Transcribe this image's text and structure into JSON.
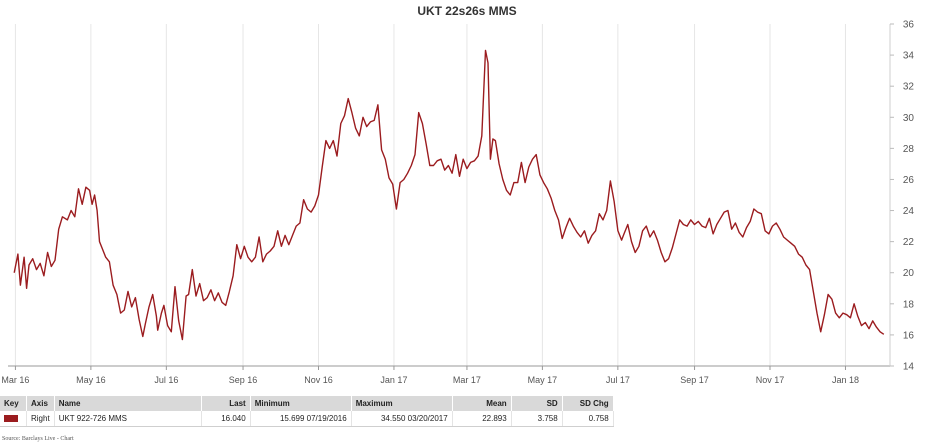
{
  "chart_data": {
    "type": "line",
    "title": "UKT 22s26s MMS",
    "xlabel": "",
    "ylabel": "",
    "y_axis_side": "right",
    "ylim": [
      14,
      36
    ],
    "y_ticks": [
      14,
      16,
      18,
      20,
      22,
      24,
      26,
      28,
      30,
      32,
      34,
      36
    ],
    "x_ticks": [
      {
        "label": "Mar 16",
        "date": "2016-03-01"
      },
      {
        "label": "May 16",
        "date": "2016-05-01"
      },
      {
        "label": "Jul 16",
        "date": "2016-07-01"
      },
      {
        "label": "Sep 16",
        "date": "2016-09-01"
      },
      {
        "label": "Nov 16",
        "date": "2016-11-01"
      },
      {
        "label": "Jan 17",
        "date": "2017-01-01"
      },
      {
        "label": "Mar 17",
        "date": "2017-03-01"
      },
      {
        "label": "May 17",
        "date": "2017-05-01"
      },
      {
        "label": "Jul 17",
        "date": "2017-07-01"
      },
      {
        "label": "Sep 17",
        "date": "2017-09-01"
      },
      {
        "label": "Nov 17",
        "date": "2017-11-01"
      },
      {
        "label": "Jan 18",
        "date": "2018-01-01"
      }
    ],
    "grid": "vertical",
    "line_color": "#9b1c1f",
    "series": [
      {
        "name": "922-726 MMS",
        "x": [
          "2016-02-29",
          "2016-03-03",
          "2016-03-05",
          "2016-03-08",
          "2016-03-10",
          "2016-03-12",
          "2016-03-15",
          "2016-03-18",
          "2016-03-21",
          "2016-03-24",
          "2016-03-27",
          "2016-03-30",
          "2016-04-02",
          "2016-04-05",
          "2016-04-08",
          "2016-04-12",
          "2016-04-15",
          "2016-04-18",
          "2016-04-21",
          "2016-04-24",
          "2016-04-27",
          "2016-04-30",
          "2016-05-02",
          "2016-05-04",
          "2016-05-06",
          "2016-05-08",
          "2016-05-10",
          "2016-05-13",
          "2016-05-16",
          "2016-05-19",
          "2016-05-22",
          "2016-05-25",
          "2016-05-28",
          "2016-05-31",
          "2016-06-03",
          "2016-06-06",
          "2016-06-09",
          "2016-06-12",
          "2016-06-14",
          "2016-06-17",
          "2016-06-20",
          "2016-06-23",
          "2016-06-24",
          "2016-06-27",
          "2016-06-29",
          "2016-07-02",
          "2016-07-05",
          "2016-07-08",
          "2016-07-11",
          "2016-07-14",
          "2016-07-17",
          "2016-07-19",
          "2016-07-22",
          "2016-07-25",
          "2016-07-28",
          "2016-07-31",
          "2016-08-03",
          "2016-08-06",
          "2016-08-09",
          "2016-08-12",
          "2016-08-15",
          "2016-08-18",
          "2016-08-21",
          "2016-08-24",
          "2016-08-27",
          "2016-08-30",
          "2016-09-02",
          "2016-09-05",
          "2016-09-08",
          "2016-09-11",
          "2016-09-14",
          "2016-09-17",
          "2016-09-20",
          "2016-09-23",
          "2016-09-26",
          "2016-09-29",
          "2016-10-02",
          "2016-10-05",
          "2016-10-08",
          "2016-10-11",
          "2016-10-14",
          "2016-10-17",
          "2016-10-20",
          "2016-10-23",
          "2016-10-26",
          "2016-10-29",
          "2016-11-01",
          "2016-11-04",
          "2016-11-07",
          "2016-11-10",
          "2016-11-13",
          "2016-11-16",
          "2016-11-19",
          "2016-11-22",
          "2016-11-25",
          "2016-11-28",
          "2016-12-01",
          "2016-12-04",
          "2016-12-07",
          "2016-12-10",
          "2016-12-13",
          "2016-12-16",
          "2016-12-19",
          "2016-12-22",
          "2016-12-25",
          "2016-12-28",
          "2016-12-31",
          "2017-01-03",
          "2017-01-06",
          "2017-01-09",
          "2017-01-12",
          "2017-01-15",
          "2017-01-18",
          "2017-01-21",
          "2017-01-24",
          "2017-01-27",
          "2017-01-30",
          "2017-02-02",
          "2017-02-05",
          "2017-02-08",
          "2017-02-11",
          "2017-02-14",
          "2017-02-17",
          "2017-02-20",
          "2017-02-23",
          "2017-02-26",
          "2017-03-01",
          "2017-03-04",
          "2017-03-07",
          "2017-03-10",
          "2017-03-13",
          "2017-03-16",
          "2017-03-18",
          "2017-03-20",
          "2017-03-22",
          "2017-03-24",
          "2017-03-27",
          "2017-03-30",
          "2017-04-02",
          "2017-04-05",
          "2017-04-08",
          "2017-04-11",
          "2017-04-14",
          "2017-04-17",
          "2017-04-20",
          "2017-04-23",
          "2017-04-26",
          "2017-04-29",
          "2017-05-02",
          "2017-05-05",
          "2017-05-08",
          "2017-05-11",
          "2017-05-14",
          "2017-05-17",
          "2017-05-20",
          "2017-05-23",
          "2017-05-26",
          "2017-05-29",
          "2017-06-01",
          "2017-06-04",
          "2017-06-07",
          "2017-06-10",
          "2017-06-13",
          "2017-06-16",
          "2017-06-19",
          "2017-06-22",
          "2017-06-25",
          "2017-06-28",
          "2017-07-01",
          "2017-07-04",
          "2017-07-06",
          "2017-07-09",
          "2017-07-12",
          "2017-07-15",
          "2017-07-18",
          "2017-07-21",
          "2017-07-24",
          "2017-07-27",
          "2017-07-30",
          "2017-08-02",
          "2017-08-05",
          "2017-08-08",
          "2017-08-11",
          "2017-08-14",
          "2017-08-17",
          "2017-08-20",
          "2017-08-23",
          "2017-08-26",
          "2017-08-29",
          "2017-09-01",
          "2017-09-04",
          "2017-09-07",
          "2017-09-10",
          "2017-09-13",
          "2017-09-16",
          "2017-09-19",
          "2017-09-22",
          "2017-09-25",
          "2017-09-28",
          "2017-10-01",
          "2017-10-04",
          "2017-10-07",
          "2017-10-10",
          "2017-10-13",
          "2017-10-16",
          "2017-10-19",
          "2017-10-22",
          "2017-10-25",
          "2017-10-28",
          "2017-10-31",
          "2017-11-03",
          "2017-11-06",
          "2017-11-09",
          "2017-11-12",
          "2017-11-15",
          "2017-11-18",
          "2017-11-21",
          "2017-11-24",
          "2017-11-27",
          "2017-11-30",
          "2017-12-03",
          "2017-12-06",
          "2017-12-09",
          "2017-12-12",
          "2017-12-15",
          "2017-12-18",
          "2017-12-21",
          "2017-12-24",
          "2017-12-27",
          "2017-12-30",
          "2018-01-02",
          "2018-01-05",
          "2018-01-08",
          "2018-01-11",
          "2018-01-14",
          "2018-01-17",
          "2018-01-20",
          "2018-01-23",
          "2018-01-26",
          "2018-01-29",
          "2018-02-01"
        ],
        "values": [
          20.0,
          21.2,
          19.2,
          21.0,
          19.0,
          20.5,
          20.9,
          20.2,
          20.6,
          19.8,
          21.3,
          20.4,
          20.8,
          22.8,
          23.6,
          23.4,
          24.0,
          23.6,
          25.4,
          24.4,
          25.5,
          25.3,
          24.4,
          25.0,
          24.0,
          22.0,
          21.6,
          21.0,
          20.7,
          19.2,
          18.6,
          17.4,
          17.6,
          18.8,
          17.8,
          18.4,
          17.0,
          15.9,
          16.7,
          17.8,
          18.6,
          17.2,
          16.3,
          17.4,
          17.9,
          16.6,
          16.2,
          19.1,
          16.9,
          15.7,
          18.5,
          18.6,
          20.2,
          18.5,
          19.3,
          18.2,
          18.4,
          18.9,
          18.2,
          18.7,
          18.1,
          17.9,
          18.8,
          19.8,
          21.8,
          20.9,
          21.7,
          21.0,
          20.7,
          21.0,
          22.3,
          20.7,
          21.2,
          21.4,
          21.7,
          22.7,
          21.7,
          22.4,
          21.8,
          22.4,
          23.0,
          23.2,
          24.7,
          24.1,
          23.9,
          24.3,
          25.0,
          26.8,
          28.5,
          28.0,
          28.5,
          27.5,
          29.6,
          30.1,
          31.2,
          30.3,
          29.3,
          28.8,
          30.0,
          29.4,
          29.7,
          29.8,
          30.8,
          27.9,
          27.3,
          26.1,
          25.7,
          24.1,
          25.8,
          26.0,
          26.4,
          26.9,
          27.6,
          30.3,
          29.6,
          28.3,
          26.9,
          26.9,
          27.2,
          27.3,
          26.6,
          26.9,
          26.4,
          27.6,
          26.2,
          27.3,
          26.7,
          27.1,
          27.2,
          27.5,
          28.8,
          34.3,
          33.5,
          27.3,
          28.6,
          28.5,
          27.0,
          26.0,
          25.3,
          25.0,
          25.8,
          25.8,
          27.1,
          25.8,
          26.8,
          27.3,
          27.6,
          26.3,
          25.8,
          25.4,
          24.8,
          24.0,
          23.4,
          22.2,
          22.9,
          23.5,
          23.0,
          22.6,
          22.3,
          22.7,
          21.9,
          22.4,
          22.7,
          23.8,
          23.4,
          24.0,
          25.9,
          24.6,
          22.7,
          22.1,
          22.5,
          23.1,
          22.0,
          21.3,
          21.7,
          22.7,
          23.0,
          22.3,
          22.7,
          22.1,
          21.3,
          20.7,
          20.9,
          21.6,
          22.5,
          23.4,
          23.1,
          23.0,
          23.4,
          23.1,
          23.3,
          23.0,
          22.9,
          23.5,
          22.5,
          23.1,
          23.5,
          23.9,
          24.0,
          22.8,
          23.2,
          22.6,
          22.3,
          22.9,
          23.3,
          24.1,
          23.9,
          23.8,
          22.7,
          22.5,
          23.0,
          23.2,
          22.8,
          22.3,
          22.1,
          21.9,
          21.7,
          21.2,
          21.0,
          20.5,
          20.2,
          18.8,
          17.4,
          16.2,
          17.3,
          18.6,
          18.3,
          17.4,
          17.1,
          17.4,
          17.3,
          17.1,
          18.0,
          17.2,
          16.6,
          16.8,
          16.4,
          16.9,
          16.5,
          16.2,
          16.04
        ]
      }
    ]
  },
  "legend": {
    "headers": [
      "Key",
      "Axis",
      "Name",
      "Last",
      "Minimum",
      "Maximum",
      "Mean",
      "SD",
      "SD Chg"
    ],
    "row": {
      "axis": "Right",
      "name": "UKT 922-726 MMS",
      "last": "16.040",
      "minimum": "15.699 07/19/2016",
      "maximum": "34.550 03/20/2017",
      "mean": "22.893",
      "sd": "3.758",
      "sd_chg": "0.758"
    }
  },
  "source": "Source: Barclays Live - Chart"
}
